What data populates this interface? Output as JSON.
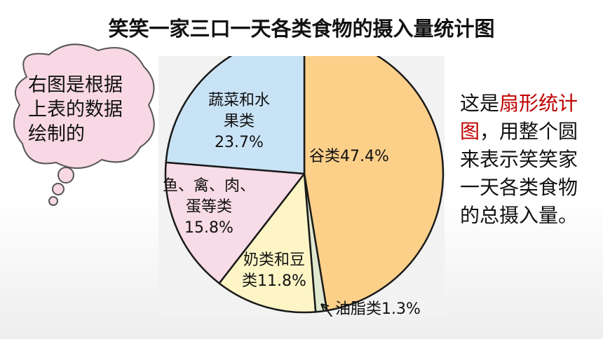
{
  "title": "笑笑一家三口一天各类食物的摄入量统计图",
  "bubble": {
    "lines": [
      "右图是根据",
      "上表的数据",
      "绘制的"
    ]
  },
  "description": {
    "pre": "这是",
    "highlight": "扇形统计图",
    "post": "，用整个圆来表示笑笑家一天各类食物的总摄入量。"
  },
  "colors": {
    "grain": "#fdd08a",
    "vegetable": "#c9e3f6",
    "meat": "#f7dbe6",
    "dairy": "#fdf5c6",
    "oil": "#dfe9cf",
    "stroke": "#1a1a1a",
    "highlight": "#c00000"
  },
  "chart_data": {
    "type": "pie",
    "title": "笑笑一家三口一天各类食物的摄入量统计图",
    "slices": [
      {
        "label": "谷类",
        "value": 47.4,
        "text": "谷类47.4%",
        "lines": [
          "谷类47.4%"
        ],
        "color": "#fdd08a"
      },
      {
        "label": "油脂类",
        "value": 1.3,
        "text": "油脂类1.3%",
        "lines": [
          "油脂类1.3%"
        ],
        "color": "#dfe9cf"
      },
      {
        "label": "奶类和豆类",
        "value": 11.8,
        "text": "奶类和豆类11.8%",
        "lines": [
          "奶类和豆",
          "类11.8%"
        ],
        "color": "#fdf5c6"
      },
      {
        "label": "鱼、禽、肉、蛋等类",
        "value": 15.8,
        "text": "鱼、禽、肉、蛋等类15.8%",
        "lines": [
          "鱼、禽、肉、",
          "蛋等类",
          "15.8%"
        ],
        "color": "#f7dbe6"
      },
      {
        "label": "蔬菜和水果类",
        "value": 23.7,
        "text": "蔬菜和水果类23.7%",
        "lines": [
          "蔬菜和水",
          "果类",
          "23.7%"
        ],
        "color": "#c9e3f6"
      }
    ]
  }
}
